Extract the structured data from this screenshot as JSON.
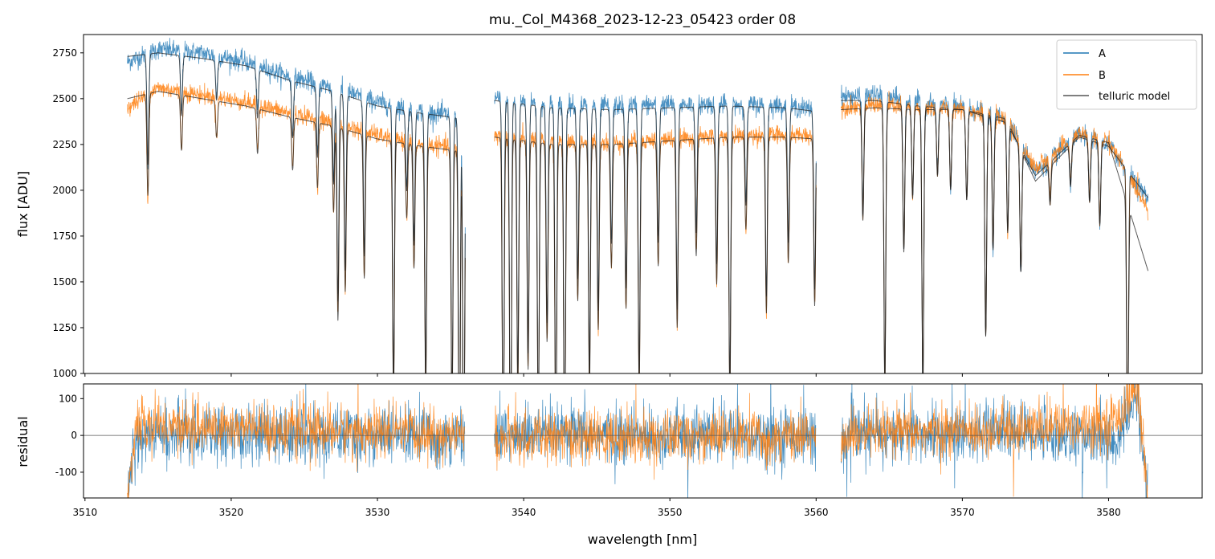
{
  "chart_data": [
    {
      "type": "line",
      "title": "mu._Col_M4368_2023-12-23_05423  order 08",
      "xlabel": "",
      "ylabel": "flux [ADU]",
      "xlim": [
        3509.9,
        3586.4
      ],
      "ylim": [
        1000,
        2850
      ],
      "yticks": [
        1000,
        1250,
        1500,
        1750,
        2000,
        2250,
        2500,
        2750
      ],
      "xticks": [
        3510,
        3520,
        3530,
        3540,
        3550,
        3560,
        3570,
        3580
      ],
      "legend_position": "top-right",
      "segments": [
        [
          3512.9,
          3536.0
        ],
        [
          3538.0,
          3560.0
        ],
        [
          3561.7,
          3582.7
        ]
      ],
      "continuum": {
        "x": [
          3512.9,
          3515,
          3518,
          3521,
          3524,
          3527,
          3530,
          3533,
          3536,
          3538,
          3542,
          3546,
          3550,
          3554,
          3558,
          3560,
          3561.7,
          3564,
          3567,
          3570,
          3573,
          3575,
          3578,
          3580,
          3582.7
        ],
        "A": [
          2700,
          2770,
          2750,
          2700,
          2620,
          2560,
          2480,
          2430,
          2400,
          2500,
          2470,
          2460,
          2470,
          2470,
          2460,
          2440,
          2510,
          2520,
          2480,
          2450,
          2400,
          2100,
          2300,
          2250,
          1950
        ],
        "B": [
          2450,
          2560,
          2520,
          2480,
          2420,
          2370,
          2300,
          2250,
          2230,
          2300,
          2270,
          2260,
          2280,
          2300,
          2300,
          2300,
          2450,
          2470,
          2450,
          2450,
          2380,
          2120,
          2310,
          2270,
          1900
        ],
        "model": [
          2730,
          2750,
          2720,
          2680,
          2600,
          2540,
          2460,
          2420,
          2390,
          2490,
          2450,
          2440,
          2450,
          2460,
          2450,
          2430,
          2490,
          2490,
          2460,
          2440,
          2390,
          2050,
          2290,
          2240,
          1960
        ],
        "modelB": [
          2500,
          2540,
          2500,
          2460,
          2400,
          2350,
          2280,
          2240,
          2210,
          2290,
          2250,
          2250,
          2270,
          2290,
          2290,
          2280,
          2440,
          2450,
          2440,
          2440,
          2370,
          2080,
          2300,
          2260,
          1560
        ]
      },
      "absorption_lines": [
        {
          "x": 3514.3,
          "depth": 0.22
        },
        {
          "x": 3516.6,
          "depth": 0.12
        },
        {
          "x": 3519.0,
          "depth": 0.08
        },
        {
          "x": 3521.8,
          "depth": 0.1
        },
        {
          "x": 3524.2,
          "depth": 0.12
        },
        {
          "x": 3525.9,
          "depth": 0.15
        },
        {
          "x": 3527.0,
          "depth": 0.2
        },
        {
          "x": 3527.3,
          "depth": 0.45
        },
        {
          "x": 3527.8,
          "depth": 0.38
        },
        {
          "x": 3529.1,
          "depth": 0.34
        },
        {
          "x": 3531.1,
          "depth": 0.62
        },
        {
          "x": 3532.0,
          "depth": 0.18
        },
        {
          "x": 3532.5,
          "depth": 0.3
        },
        {
          "x": 3533.3,
          "depth": 0.6
        },
        {
          "x": 3535.1,
          "depth": 0.65
        },
        {
          "x": 3535.6,
          "depth": 0.85
        },
        {
          "x": 3535.9,
          "depth": 0.9
        },
        {
          "x": 3538.6,
          "depth": 0.8
        },
        {
          "x": 3539.1,
          "depth": 0.85
        },
        {
          "x": 3539.6,
          "depth": 0.6
        },
        {
          "x": 3540.3,
          "depth": 0.55
        },
        {
          "x": 3541.0,
          "depth": 0.7
        },
        {
          "x": 3541.6,
          "depth": 0.48
        },
        {
          "x": 3542.2,
          "depth": 0.75
        },
        {
          "x": 3542.8,
          "depth": 0.8
        },
        {
          "x": 3543.7,
          "depth": 0.38
        },
        {
          "x": 3544.5,
          "depth": 0.6
        },
        {
          "x": 3545.1,
          "depth": 0.45
        },
        {
          "x": 3546.0,
          "depth": 0.3
        },
        {
          "x": 3547.0,
          "depth": 0.4
        },
        {
          "x": 3547.9,
          "depth": 0.6
        },
        {
          "x": 3549.2,
          "depth": 0.3
        },
        {
          "x": 3550.5,
          "depth": 0.45
        },
        {
          "x": 3551.8,
          "depth": 0.28
        },
        {
          "x": 3553.2,
          "depth": 0.35
        },
        {
          "x": 3554.1,
          "depth": 0.62
        },
        {
          "x": 3555.2,
          "depth": 0.22
        },
        {
          "x": 3556.6,
          "depth": 0.42
        },
        {
          "x": 3558.1,
          "depth": 0.3
        },
        {
          "x": 3559.9,
          "depth": 0.4
        },
        {
          "x": 3563.2,
          "depth": 0.25
        },
        {
          "x": 3564.7,
          "depth": 0.62
        },
        {
          "x": 3566.0,
          "depth": 0.32
        },
        {
          "x": 3566.6,
          "depth": 0.2
        },
        {
          "x": 3567.3,
          "depth": 0.62
        },
        {
          "x": 3568.3,
          "depth": 0.15
        },
        {
          "x": 3569.2,
          "depth": 0.18
        },
        {
          "x": 3570.3,
          "depth": 0.2
        },
        {
          "x": 3571.6,
          "depth": 0.5
        },
        {
          "x": 3572.1,
          "depth": 0.3
        },
        {
          "x": 3573.1,
          "depth": 0.25
        },
        {
          "x": 3574.0,
          "depth": 0.3
        },
        {
          "x": 3576.0,
          "depth": 0.1
        },
        {
          "x": 3577.4,
          "depth": 0.1
        },
        {
          "x": 3578.7,
          "depth": 0.15
        },
        {
          "x": 3579.4,
          "depth": 0.2
        },
        {
          "x": 3581.3,
          "depth": 0.7
        }
      ],
      "legend": [
        {
          "label": "A",
          "color": "#1f77b4"
        },
        {
          "label": "B",
          "color": "#ff7f0e"
        },
        {
          "label": "telluric model",
          "color": "#555555"
        }
      ]
    },
    {
      "type": "line",
      "xlabel": "wavelength [nm]",
      "ylabel": "residual",
      "xlim": [
        3509.9,
        3586.4
      ],
      "ylim": [
        -170,
        140
      ],
      "yticks": [
        -100,
        0,
        100
      ],
      "xticks": [
        3510,
        3520,
        3530,
        3540,
        3550,
        3560,
        3570,
        3580
      ],
      "zero_line": 0,
      "noise_rms": {
        "A": 40,
        "B": 35
      },
      "drift": {
        "x": [
          3512.9,
          3513.6,
          3536.0,
          3538.0,
          3560.0,
          3561.7,
          3562.3,
          3575,
          3580.5,
          3582.0,
          3582.7
        ],
        "A": [
          -150,
          0,
          0,
          0,
          0,
          -40,
          0,
          10,
          -20,
          100,
          -170
        ],
        "B": [
          -150,
          30,
          0,
          -10,
          0,
          -30,
          0,
          20,
          40,
          140,
          -170
        ]
      }
    }
  ],
  "colors": {
    "A": "#1f77b4",
    "B": "#ff7f0e",
    "model": "#333333",
    "axis": "#000000"
  }
}
